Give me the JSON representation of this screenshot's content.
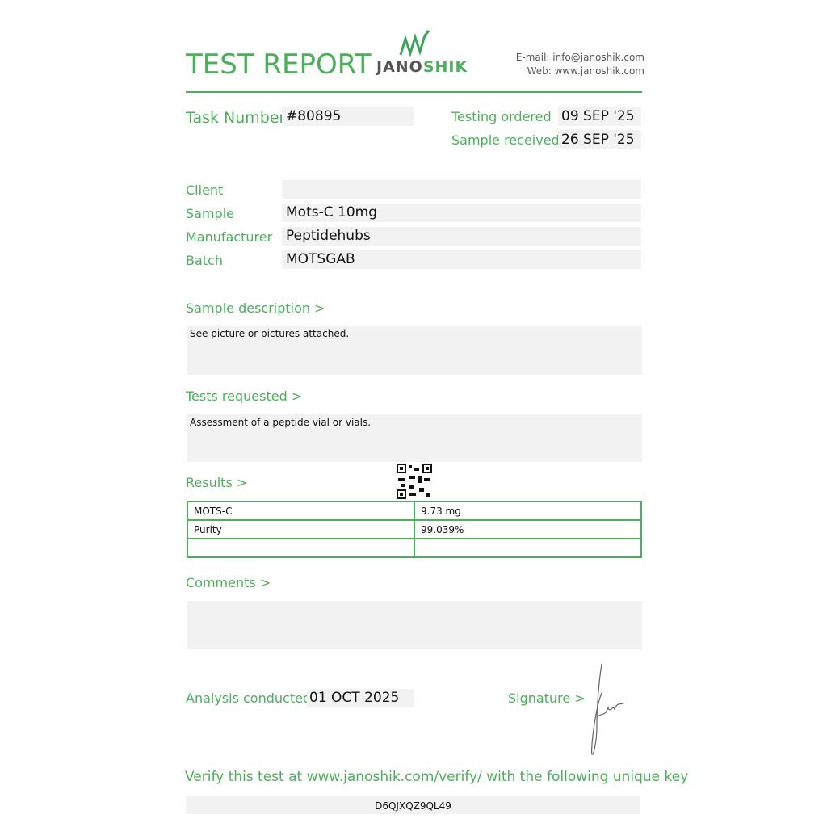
{
  "header": {
    "title": "TEST REPORT",
    "logo_text_dark": "JANO",
    "logo_text_green": "SHIK",
    "email": "E-mail: info@janoshik.com",
    "web": "Web: www.janoshik.com"
  },
  "task": {
    "label": "Task Number",
    "value": "#80895"
  },
  "dates": {
    "ordered_label": "Testing ordered  >",
    "ordered_value": "09 SEP '25",
    "received_label": "Sample received >",
    "received_value": "26 SEP '25"
  },
  "fields": [
    {
      "label": "Client",
      "value": ""
    },
    {
      "label": "Sample",
      "value": "Mots-C 10mg"
    },
    {
      "label": "Manufacturer",
      "value": "Peptidehubs"
    },
    {
      "label": "Batch",
      "value": "MOTSGAB"
    }
  ],
  "sample_description": {
    "label": "Sample description >",
    "text": "See picture or pictures attached."
  },
  "tests_requested": {
    "label": "Tests requested >",
    "text": "Assessment of a peptide vial or vials."
  },
  "results": {
    "label": "Results >",
    "rows": [
      [
        "MOTS-C",
        "9.73 mg"
      ],
      [
        "Purity",
        "99.039%"
      ],
      [
        "",
        ""
      ]
    ]
  },
  "comments": {
    "label": "Comments >",
    "text": ""
  },
  "analysis": {
    "label": "Analysis conducted >",
    "value": "01 OCT 2025"
  },
  "signature": {
    "label": "Signature >"
  },
  "verify": {
    "text": "Verify this test at www.janoshik.com/verify/ with the following unique key",
    "key": "D6QJXQZ9QL49"
  },
  "colors": {
    "accent": "#4caf5a",
    "box": "#f2f2f2"
  }
}
